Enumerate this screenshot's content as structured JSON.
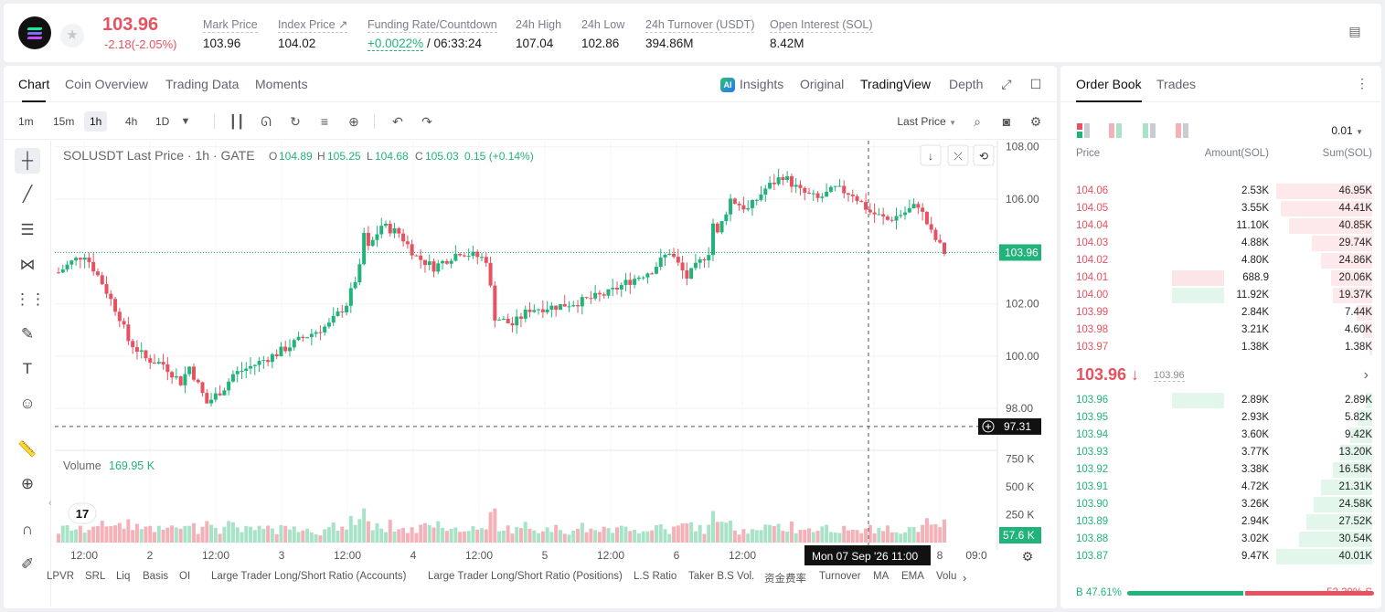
{
  "header": {
    "last_price": "103.96",
    "change": "-2.18(-2.05%)",
    "stats": [
      {
        "label": "Mark Price",
        "value": "103.96"
      },
      {
        "label": "Index Price ↗",
        "value": "104.02"
      },
      {
        "label": "Funding Rate/Countdown",
        "value_green": "+0.0022%",
        "value": "/ 06:33:24"
      },
      {
        "label": "24h High",
        "value": "107.04"
      },
      {
        "label": "24h Low",
        "value": "102.86"
      },
      {
        "label": "24h Turnover (USDT)",
        "value": "394.86M"
      },
      {
        "label": "Open Interest (SOL)",
        "value": "8.42M"
      }
    ]
  },
  "chart_tabs": [
    "Chart",
    "Coin Overview",
    "Trading Data",
    "Moments"
  ],
  "views": {
    "insights": "Insights",
    "original": "Original",
    "tradingview": "TradingView",
    "depth": "Depth"
  },
  "timeframes": [
    "1m",
    "15m",
    "1h",
    "4h",
    "1D"
  ],
  "price_type": "Last Price",
  "legend": {
    "symbol": "SOLUSDT Last Price · 1h · GATE",
    "o_label": "O",
    "o": "104.89",
    "h_label": "H",
    "h": "105.25",
    "l_label": "L",
    "l": "104.68",
    "c_label": "C",
    "c": "105.03",
    "chg": "0.15 (+0.14%)"
  },
  "volume_legend": {
    "label": "Volume",
    "value": "169.95 K"
  },
  "price_axis": [
    "108.00",
    "106.00",
    "104.00",
    "102.00",
    "100.00",
    "98.00"
  ],
  "volume_axis": [
    "750 K",
    "500 K",
    "250 K"
  ],
  "time_axis": [
    "12:00",
    "2",
    "12:00",
    "3",
    "12:00",
    "4",
    "12:00",
    "5",
    "12:00",
    "6",
    "12:00",
    "8",
    "09:0"
  ],
  "current_price_tag": "103.96",
  "crosshair_price_tag": "97.31",
  "volume_tag": "57.6 K",
  "crosshair_time": "Mon 07 Sep '26    11:00",
  "indicators": [
    "LPVR",
    "SRL",
    "Liq",
    "Basis",
    "OI",
    "Large Trader Long/Short Ratio (Accounts)",
    "Large Trader Long/Short Ratio (Positions)",
    "L.S Ratio",
    "Taker B.S Vol.",
    "资金费率",
    "Turnover",
    "MA",
    "EMA",
    "Volu"
  ],
  "chart_data": {
    "type": "candlestick",
    "symbol": "SOLUSDT",
    "interval": "1h",
    "ylim": [
      96.4,
      108.2
    ],
    "volume_ylim": [
      0,
      820000
    ],
    "open": 103.2,
    "last": 103.96,
    "high": 107.1,
    "low": 97.3,
    "last_candle": {
      "o": 104.89,
      "h": 105.25,
      "l": 104.68,
      "c": 105.03
    },
    "volume_last": 169950
  },
  "orderbook": {
    "tabs": [
      "Order Book",
      "Trades"
    ],
    "precision": "0.01",
    "headers": [
      "Price",
      "Amount(SOL)",
      "Sum(SOL)"
    ],
    "asks": [
      {
        "price": "104.06",
        "amount": "2.53K",
        "sum": "46.95K",
        "sum_pct": 1.0
      },
      {
        "price": "104.05",
        "amount": "3.55K",
        "sum": "44.41K",
        "sum_pct": 0.95
      },
      {
        "price": "104.04",
        "amount": "11.10K",
        "sum": "40.85K",
        "sum_pct": 0.87
      },
      {
        "price": "104.03",
        "amount": "4.88K",
        "sum": "29.74K",
        "sum_pct": 0.63
      },
      {
        "price": "104.02",
        "amount": "4.80K",
        "sum": "24.86K",
        "sum_pct": 0.53
      },
      {
        "price": "104.01",
        "amount": "688.9",
        "sum": "20.06K",
        "sum_pct": 0.43,
        "hl_pct": 0.68
      },
      {
        "price": "104.00",
        "amount": "11.92K",
        "sum": "19.37K",
        "sum_pct": 0.41,
        "hl_pct": 0.68,
        "hl_green": true
      },
      {
        "price": "103.99",
        "amount": "2.84K",
        "sum": "7.44K",
        "sum_pct": 0.16
      },
      {
        "price": "103.98",
        "amount": "3.21K",
        "sum": "4.60K",
        "sum_pct": 0.1
      },
      {
        "price": "103.97",
        "amount": "1.38K",
        "sum": "1.38K",
        "sum_pct": 0.03
      }
    ],
    "mid_price": "103.96 ↓",
    "mid_mark": "103.96",
    "bids": [
      {
        "price": "103.96",
        "amount": "2.89K",
        "sum": "2.89K",
        "sum_pct": 0.07,
        "hl_pct": 0.68
      },
      {
        "price": "103.95",
        "amount": "2.93K",
        "sum": "5.82K",
        "sum_pct": 0.15
      },
      {
        "price": "103.94",
        "amount": "3.60K",
        "sum": "9.42K",
        "sum_pct": 0.23
      },
      {
        "price": "103.93",
        "amount": "3.77K",
        "sum": "13.20K",
        "sum_pct": 0.33
      },
      {
        "price": "103.92",
        "amount": "3.38K",
        "sum": "16.58K",
        "sum_pct": 0.41
      },
      {
        "price": "103.91",
        "amount": "4.72K",
        "sum": "21.31K",
        "sum_pct": 0.53
      },
      {
        "price": "103.90",
        "amount": "3.26K",
        "sum": "24.58K",
        "sum_pct": 0.61
      },
      {
        "price": "103.89",
        "amount": "2.94K",
        "sum": "27.52K",
        "sum_pct": 0.69
      },
      {
        "price": "103.88",
        "amount": "3.02K",
        "sum": "30.54K",
        "sum_pct": 0.76
      },
      {
        "price": "103.87",
        "amount": "9.47K",
        "sum": "40.01K",
        "sum_pct": 1.0
      }
    ],
    "buy_ratio": "B 47.61%",
    "sell_ratio": "52.39% S",
    "buy_pct": 0.4761
  },
  "colors": {
    "up": "#22b37b",
    "down": "#e8515f",
    "up_vol": "#a8e3c8",
    "down_vol": "#f5b1b8"
  }
}
